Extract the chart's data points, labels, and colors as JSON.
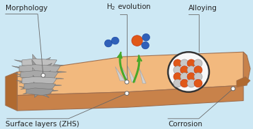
{
  "bg_color": "#cde8f4",
  "border_color": "#888888",
  "labels": {
    "morphology": "Morphology",
    "h2": "H$_2$ evolution",
    "alloying": "Alloying",
    "surface": "Surface layers (ZHS)",
    "corrosion": "Corrosion"
  },
  "slab_color_top": "#f2b97e",
  "slab_color_side": "#c8824a",
  "slab_color_bottom": "#b06a30",
  "gray_rock": "#9a9a9a",
  "gray_rock2": "#b0b0b0",
  "gray_spike": "#c8c8c8",
  "orange_ball": "#e05818",
  "blue_ball": "#3060b8",
  "green_arrow": "#48a828",
  "circle_edge": "#333333",
  "circle_bg": "#f8f8f8",
  "dot_color": "#ffffff",
  "line_color": "#666666",
  "text_color": "#222222",
  "slab_edge": "#a07050"
}
